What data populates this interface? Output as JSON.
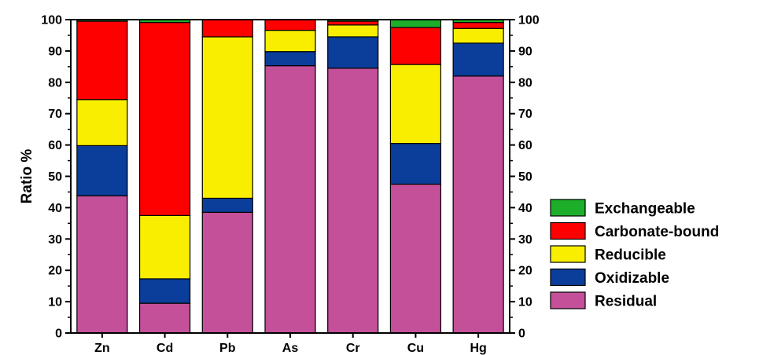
{
  "chart_data": {
    "type": "bar",
    "stacked": true,
    "categories": [
      "Zn",
      "Cd",
      "Pb",
      "As",
      "Cr",
      "Cu",
      "Hg"
    ],
    "ylabel": "Ratio %",
    "xlabel": "",
    "ylim": [
      0,
      100
    ],
    "yticks": [
      0,
      10,
      20,
      30,
      40,
      50,
      60,
      70,
      80,
      90,
      100
    ],
    "right_axis": true,
    "grid": false,
    "legend_position": "lower-right",
    "series": [
      {
        "name": "Residual",
        "color": "#C4509A",
        "values": [
          43.8,
          9.5,
          38.5,
          85.3,
          84.5,
          47.5,
          82.0
        ]
      },
      {
        "name": "Oxidizable",
        "color": "#0B3E9A",
        "values": [
          16.0,
          7.8,
          4.5,
          4.5,
          10.0,
          13.0,
          10.5
        ]
      },
      {
        "name": "Reducible",
        "color": "#F9EE00",
        "values": [
          14.7,
          20.2,
          51.5,
          6.8,
          3.8,
          25.2,
          4.7
        ]
      },
      {
        "name": "Carbonate-bound",
        "color": "#FF0000",
        "values": [
          25.0,
          61.6,
          5.5,
          3.4,
          1.2,
          11.8,
          1.9
        ]
      },
      {
        "name": "Exchangeable",
        "color": "#1EAF2A",
        "values": [
          0.5,
          0.9,
          0.0,
          0.0,
          0.5,
          2.5,
          0.9
        ]
      }
    ],
    "legend_order": [
      "Exchangeable",
      "Carbonate-bound",
      "Reducible",
      "Oxidizable",
      "Residual"
    ]
  }
}
